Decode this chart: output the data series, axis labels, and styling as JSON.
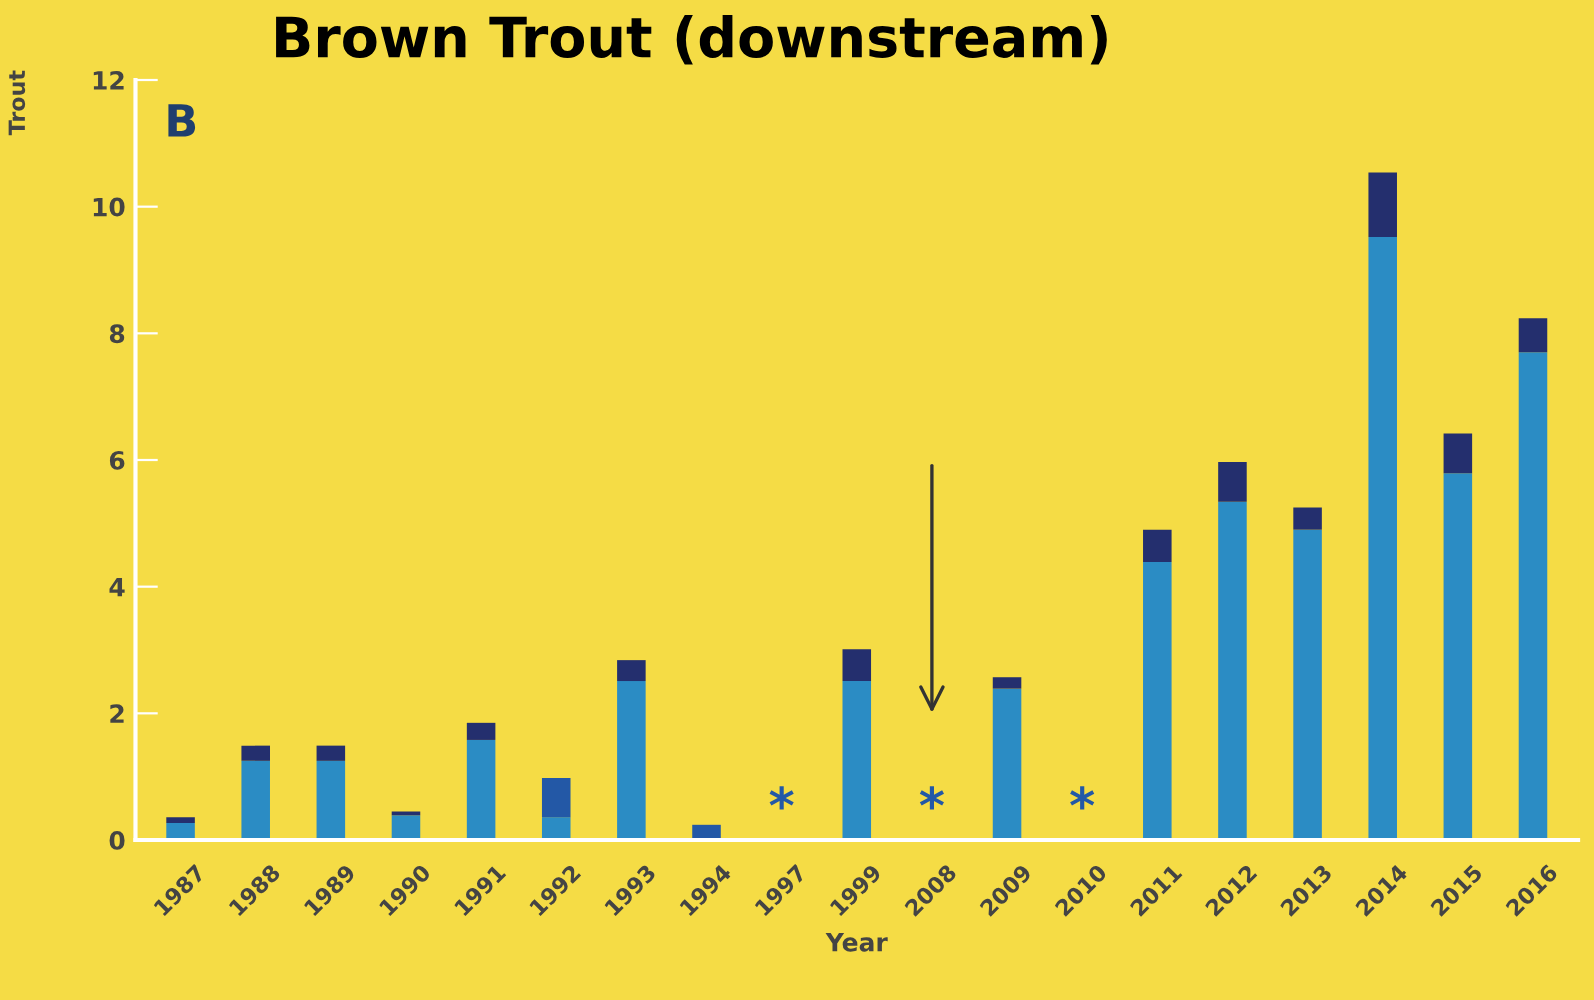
{
  "chart_data": {
    "type": "bar",
    "stacked": true,
    "title": "Brown Trout (downstream)",
    "xlabel": "Year",
    "ylabel": "Trout",
    "categories": [
      "1987",
      "1988",
      "1989",
      "1990",
      "1991",
      "1992",
      "1993",
      "1994",
      "1997",
      "1999",
      "2008",
      "2009",
      "2010",
      "2011",
      "2012",
      "2013",
      "2014",
      "2015",
      "2016"
    ],
    "series": [
      {
        "color": "#2b8cc4",
        "values": [
          0.27,
          1.25,
          1.25,
          0.39,
          1.58,
          0.36,
          2.51,
          0,
          null,
          2.51,
          null,
          2.39,
          null,
          4.39,
          5.34,
          4.9,
          9.52,
          5.79,
          7.7
        ]
      },
      {
        "color": "#242f6e",
        "colors": [
          "#242f6e",
          "#242f6e",
          "#242f6e",
          "#242f6e",
          "#242f6e",
          "#2358a6",
          "#242f6e",
          "#2358a6",
          "#242f6e",
          "#242f6e",
          "#242f6e",
          "#242f6e",
          "#242f6e",
          "#242f6e",
          "#242f6e",
          "#242f6e",
          "#242f6e",
          "#242f6e",
          "#242f6e"
        ],
        "values": [
          0.09,
          0.24,
          0.24,
          0.06,
          0.27,
          0.62,
          0.33,
          0.24,
          null,
          0.5,
          null,
          0.18,
          null,
          0.51,
          0.63,
          0.35,
          1.02,
          0.63,
          0.54
        ]
      }
    ],
    "annotations": [
      "B",
      "*",
      "*",
      "*"
    ],
    "ylim": [
      0,
      12
    ],
    "yticks": [
      0,
      2,
      4,
      6,
      8,
      10,
      12
    ],
    "grid": false,
    "legend": false
  }
}
